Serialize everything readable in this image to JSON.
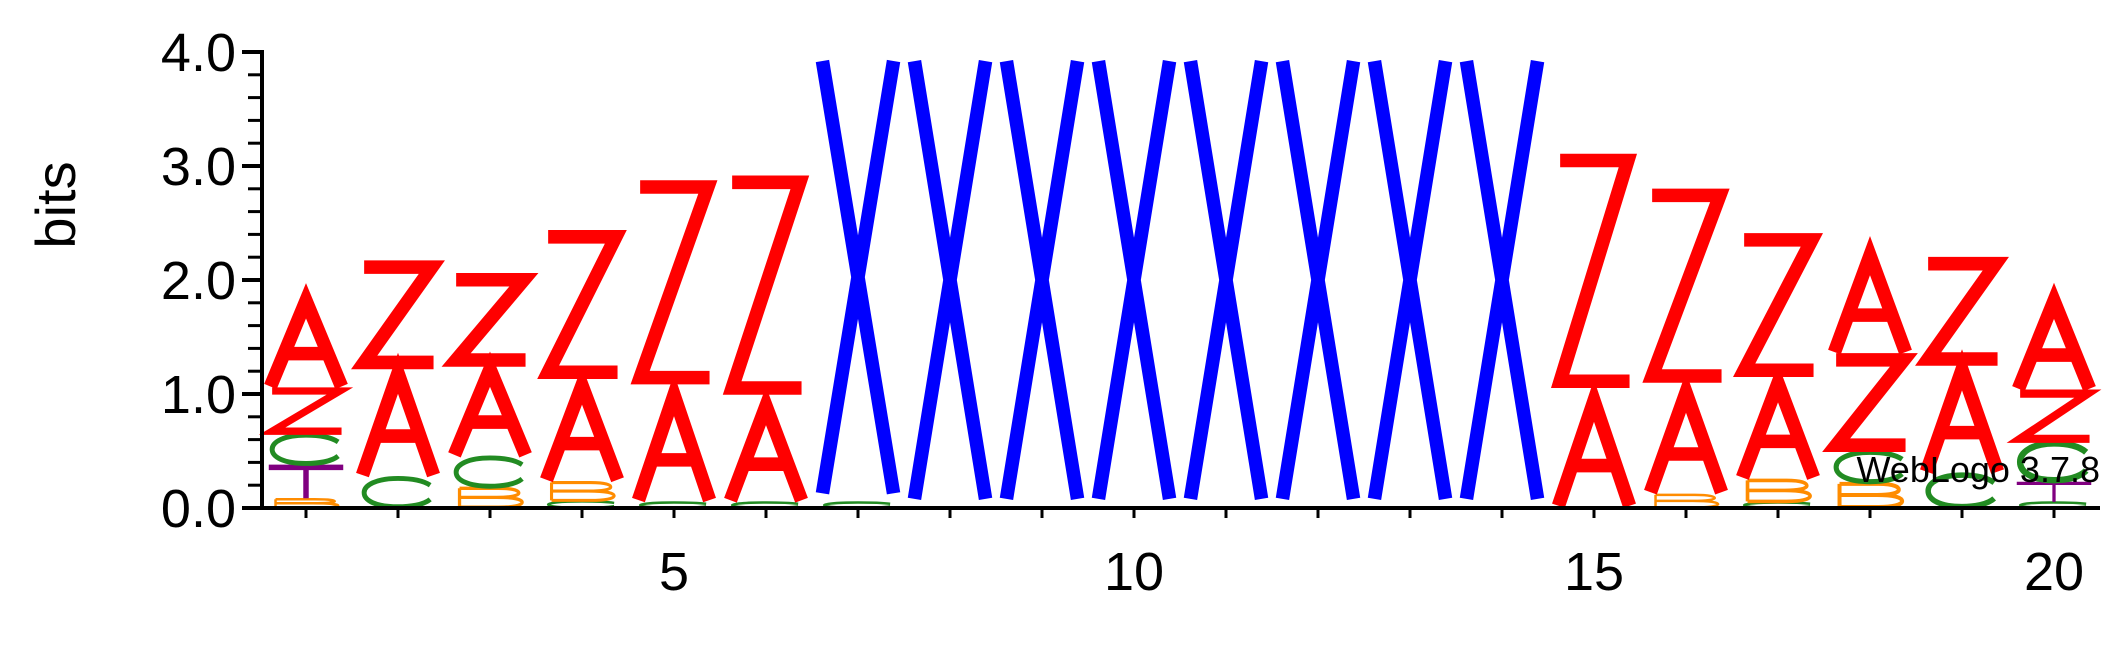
{
  "chart_data": {
    "type": "sequence-logo",
    "title": "",
    "ylabel": "bits",
    "ylim": [
      0,
      4.0
    ],
    "y_ticks": [
      "0.0",
      "1.0",
      "2.0",
      "3.0",
      "4.0"
    ],
    "x_ticks": [
      "5",
      "10",
      "15",
      "20"
    ],
    "credit": "WebLogo 3.7.8",
    "colors": {
      "A": "#ff0000",
      "Z": "#ff0000",
      "X": "#0000ff",
      "C": "#228b22",
      "B": "#ff8c00",
      "T": "#800080",
      "axis": "#000000"
    },
    "positions": [
      {
        "pos": 1,
        "stack": [
          {
            "l": "B",
            "h": 0.08
          },
          {
            "l": "T",
            "h": 0.3
          },
          {
            "l": "C",
            "h": 0.27
          },
          {
            "l": "Z",
            "h": 0.4
          },
          {
            "l": "A",
            "h": 0.8
          }
        ]
      },
      {
        "pos": 2,
        "stack": [
          {
            "l": "C",
            "h": 0.27
          },
          {
            "l": "A",
            "h": 0.95
          },
          {
            "l": "Z",
            "h": 0.95
          }
        ]
      },
      {
        "pos": 3,
        "stack": [
          {
            "l": "B",
            "h": 0.18
          },
          {
            "l": "C",
            "h": 0.27
          },
          {
            "l": "A",
            "h": 0.8
          },
          {
            "l": "Z",
            "h": 0.8
          }
        ]
      },
      {
        "pos": 4,
        "stack": [
          {
            "l": "C",
            "h": 0.06
          },
          {
            "l": "B",
            "h": 0.17
          },
          {
            "l": "A",
            "h": 0.88
          },
          {
            "l": "Z",
            "h": 1.35
          }
        ]
      },
      {
        "pos": 5,
        "stack": [
          {
            "l": "C",
            "h": 0.05
          },
          {
            "l": "A",
            "h": 0.98
          },
          {
            "l": "Z",
            "h": 1.9
          }
        ]
      },
      {
        "pos": 6,
        "stack": [
          {
            "l": "C",
            "h": 0.05
          },
          {
            "l": "A",
            "h": 0.88
          },
          {
            "l": "Z",
            "h": 2.05
          }
        ]
      },
      {
        "pos": 7,
        "stack": [
          {
            "l": "C",
            "h": 0.05
          },
          {
            "l": "X",
            "h": 3.95
          }
        ]
      },
      {
        "pos": 8,
        "stack": [
          {
            "l": "X",
            "h": 4.0
          }
        ]
      },
      {
        "pos": 9,
        "stack": [
          {
            "l": "X",
            "h": 4.0
          }
        ]
      },
      {
        "pos": 10,
        "stack": [
          {
            "l": "X",
            "h": 4.0
          }
        ]
      },
      {
        "pos": 11,
        "stack": [
          {
            "l": "X",
            "h": 4.0
          }
        ]
      },
      {
        "pos": 12,
        "stack": [
          {
            "l": "X",
            "h": 4.0
          }
        ]
      },
      {
        "pos": 13,
        "stack": [
          {
            "l": "X",
            "h": 4.0
          }
        ]
      },
      {
        "pos": 14,
        "stack": [
          {
            "l": "X",
            "h": 4.0
          }
        ]
      },
      {
        "pos": 15,
        "stack": [
          {
            "l": "A",
            "h": 0.98
          },
          {
            "l": "Z",
            "h": 2.2
          }
        ]
      },
      {
        "pos": 16,
        "stack": [
          {
            "l": "B",
            "h": 0.12
          },
          {
            "l": "A",
            "h": 0.93
          },
          {
            "l": "Z",
            "h": 1.8
          }
        ]
      },
      {
        "pos": 17,
        "stack": [
          {
            "l": "C",
            "h": 0.05
          },
          {
            "l": "B",
            "h": 0.2
          },
          {
            "l": "A",
            "h": 0.88
          },
          {
            "l": "Z",
            "h": 1.3
          }
        ]
      },
      {
        "pos": 18,
        "stack": [
          {
            "l": "B",
            "h": 0.22
          },
          {
            "l": "C",
            "h": 0.28
          },
          {
            "l": "Z",
            "h": 0.85
          },
          {
            "l": "A",
            "h": 0.9
          }
        ]
      },
      {
        "pos": 19,
        "stack": [
          {
            "l": "C",
            "h": 0.3
          },
          {
            "l": "A",
            "h": 0.95
          },
          {
            "l": "Z",
            "h": 0.95
          }
        ]
      },
      {
        "pos": 20,
        "stack": [
          {
            "l": "C",
            "h": 0.05
          },
          {
            "l": "T",
            "h": 0.18
          },
          {
            "l": "C",
            "h": 0.35
          },
          {
            "l": "Z",
            "h": 0.45
          },
          {
            "l": "A",
            "h": 0.82
          }
        ]
      }
    ]
  }
}
